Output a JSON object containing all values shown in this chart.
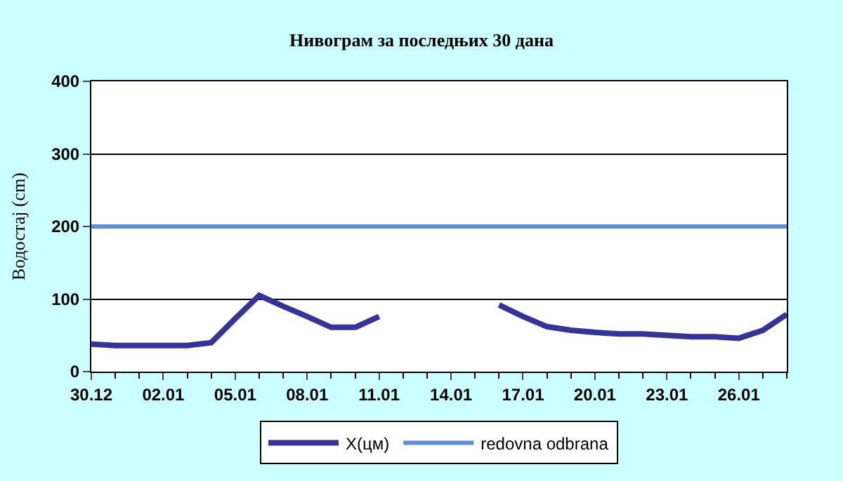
{
  "chart_data": {
    "type": "line",
    "title": "Нивограм за последњих 30 дана",
    "ylabel": "Водостај (cm)",
    "categories": [
      "30.12",
      null,
      null,
      "02.01",
      null,
      null,
      "05.01",
      null,
      null,
      "08.01",
      null,
      null,
      "11.01",
      null,
      null,
      "14.01",
      null,
      null,
      "17.01",
      null,
      null,
      "20.01",
      null,
      null,
      "23.01",
      null,
      null,
      "26.01",
      null,
      null
    ],
    "series": [
      {
        "name": "X(цм)",
        "color": "#333399",
        "values": [
          38,
          36,
          36,
          36,
          36,
          40,
          73,
          105,
          90,
          76,
          61,
          61,
          76,
          null,
          null,
          null,
          null,
          92,
          76,
          62,
          57,
          54,
          52,
          52,
          50,
          48,
          48,
          46,
          57,
          79
        ]
      }
    ],
    "ref_lines": [
      {
        "axis": "y",
        "value": 200,
        "label": "redovna odbrana",
        "color": "#5b8fd9"
      }
    ],
    "ylim": [
      0,
      400
    ],
    "yticks": [
      0,
      100,
      200,
      300,
      400
    ],
    "grid": "y",
    "legend": "bottom",
    "marker": "none",
    "line_style": "solid"
  }
}
